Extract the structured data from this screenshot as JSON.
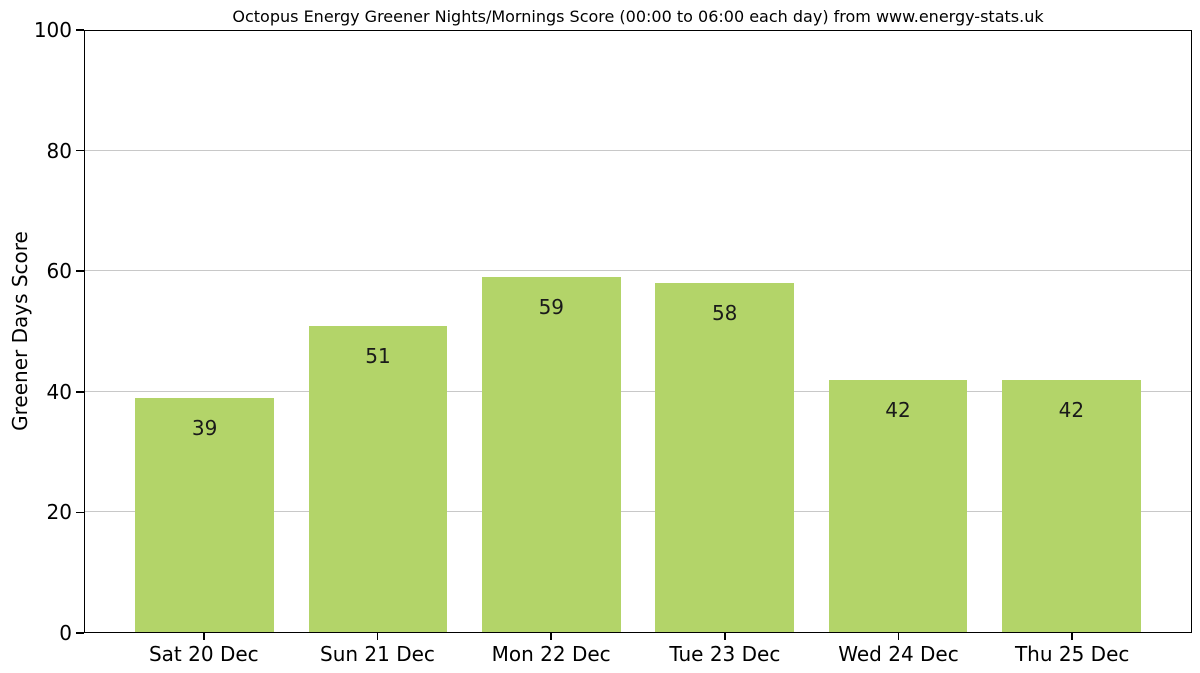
{
  "chart_data": {
    "type": "bar",
    "title": "Octopus Energy Greener Nights/Mornings Score (00:00 to 06:00 each day) from www.energy-stats.uk",
    "categories": [
      "Sat 20 Dec",
      "Sun 21 Dec",
      "Mon 22 Dec",
      "Tue 23 Dec",
      "Wed 24 Dec",
      "Thu 25 Dec"
    ],
    "values": [
      39,
      51,
      59,
      58,
      42,
      42
    ],
    "bar_labels": [
      "39",
      "51",
      "59",
      "58",
      "42",
      "42"
    ],
    "xlabel": "",
    "ylabel": "Greener Days Score",
    "ylim": [
      0,
      100
    ],
    "yticks": [
      0,
      20,
      40,
      60,
      80,
      100
    ],
    "grid": "horizontal",
    "legend": "none",
    "colors": {
      "bar": "#b3d469",
      "bar_label_text": "#1a1a1a",
      "grid_line": "#c8c8c8",
      "spine": "#000000",
      "background": "#ffffff",
      "text": "#000000"
    }
  }
}
